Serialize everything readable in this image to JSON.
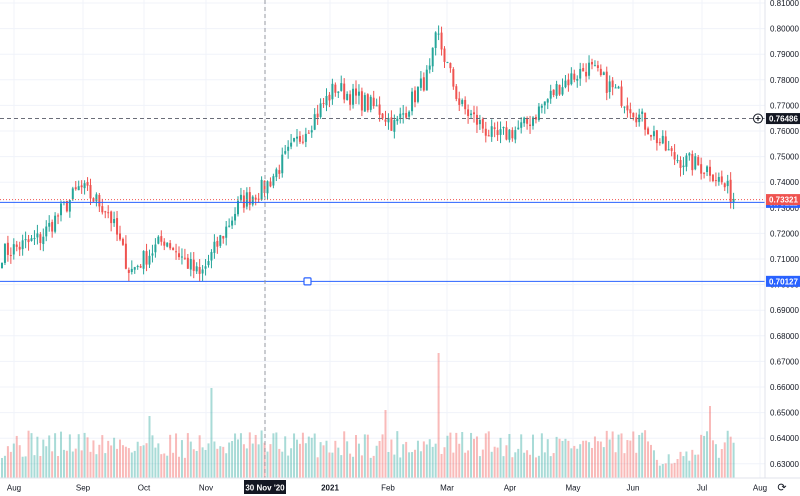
{
  "chart_data": {
    "type": "candlestick",
    "symbol": "AUDUSD",
    "timeframe": "daily",
    "y_axis": {
      "ticks": [
        "0.81000",
        "0.80000",
        "0.79000",
        "0.78000",
        "0.77000",
        "0.76000",
        "0.75000",
        "0.74000",
        "0.73000",
        "0.72000",
        "0.71000",
        "0.70000",
        "0.69000",
        "0.68000",
        "0.67000",
        "0.66000",
        "0.65000",
        "0.64000",
        "0.63000"
      ],
      "ylim": [
        0.6265,
        0.8125
      ]
    },
    "x_axis": {
      "labels": [
        "Aug",
        "Sep",
        "Oct",
        "Nov",
        "30 Nov '20",
        "2021",
        "Feb",
        "Mar",
        "Apr",
        "May",
        "Jun",
        "Jul",
        "Aug"
      ],
      "highlighted_label": "30 Nov '20"
    },
    "horizontal_lines": [
      {
        "price": 0.73211,
        "label": "0.73211",
        "style": "solid",
        "color": "#2962ff"
      },
      {
        "price": 0.70127,
        "label": "0.70127",
        "style": "solid",
        "color": "#2962ff"
      }
    ],
    "price_markers": [
      {
        "price": 0.76486,
        "label": "0.76486",
        "kind": "crosshair",
        "color": "#131722"
      },
      {
        "price": 0.73321,
        "label": "0.73321",
        "kind": "last-price",
        "color": "#ef5350"
      }
    ],
    "crosshair_date": "30 Nov '20",
    "series": [
      {
        "name": "price",
        "kind": "candles",
        "key_points": [
          {
            "x": "Aug",
            "close": 0.712
          },
          {
            "x": "Aug",
            "close": 0.718
          },
          {
            "x": "Sep",
            "close": 0.738
          },
          {
            "x": "Sep",
            "close": 0.729
          },
          {
            "x": "Oct",
            "close": 0.705
          },
          {
            "x": "Oct",
            "close": 0.718
          },
          {
            "x": "Nov",
            "close": 0.703
          },
          {
            "x": "Nov",
            "close": 0.732
          },
          {
            "x": "30 Nov '20",
            "close": 0.738
          },
          {
            "x": "2021",
            "close": 0.777
          },
          {
            "x": "2021",
            "close": 0.768
          },
          {
            "x": "Feb",
            "close": 0.762
          },
          {
            "x": "Feb",
            "close": 0.783
          },
          {
            "x": "Mar",
            "close": 0.798
          },
          {
            "x": "Mar",
            "close": 0.77
          },
          {
            "x": "Apr",
            "close": 0.757
          },
          {
            "x": "Apr",
            "close": 0.762
          },
          {
            "x": "May",
            "close": 0.778
          },
          {
            "x": "May",
            "close": 0.785
          },
          {
            "x": "Jun",
            "close": 0.771
          },
          {
            "x": "Jun",
            "close": 0.75
          },
          {
            "x": "Jul",
            "close": 0.745
          },
          {
            "x": "Jul",
            "close": 0.733
          }
        ]
      },
      {
        "name": "volume",
        "kind": "bars"
      }
    ],
    "colors": {
      "up": "#26a69a",
      "down": "#ef5350",
      "line": "#2962ff",
      "grid": "#f0f3fa"
    }
  }
}
